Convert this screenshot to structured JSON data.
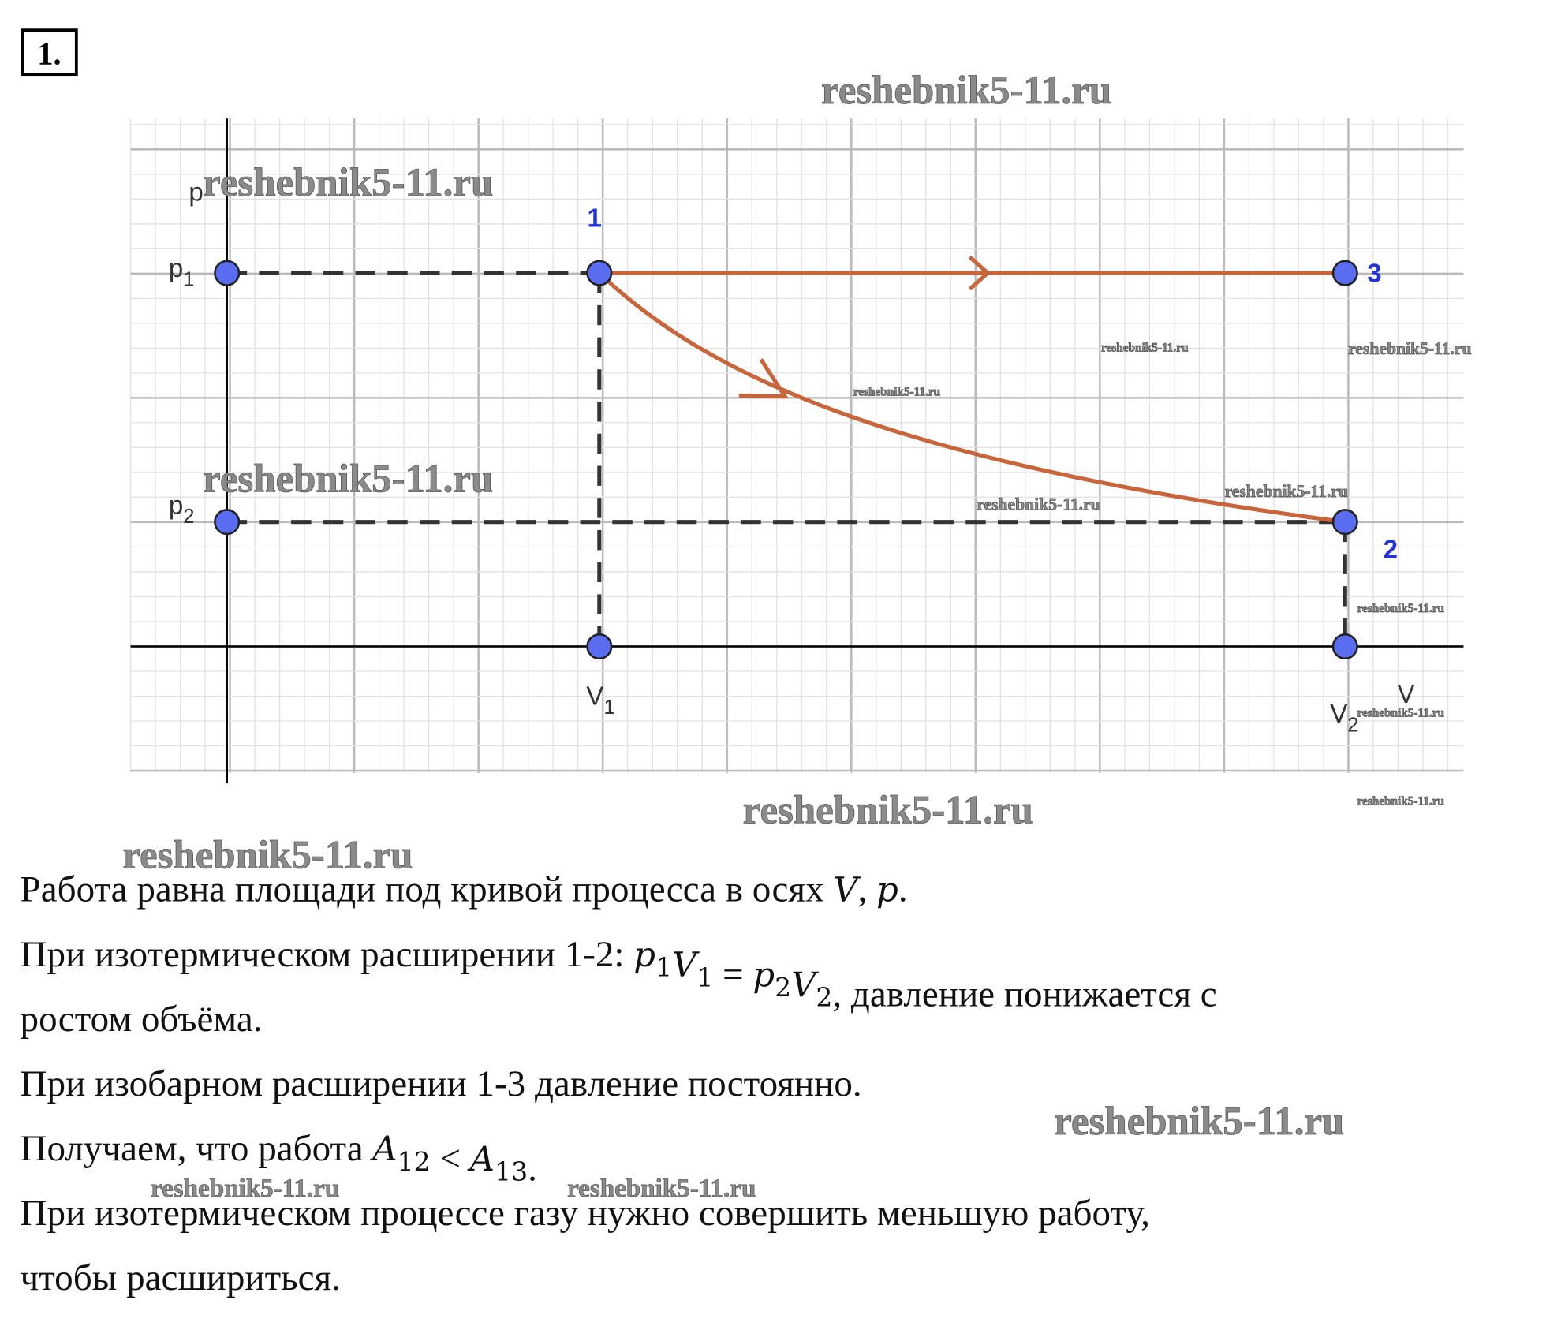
{
  "problem_number": "1.",
  "watermark": "reshebnik5-11.ru",
  "diagram": {
    "p_axis": "p",
    "v_axis": "V",
    "p1": {
      "main": "p",
      "sub": "1"
    },
    "p2": {
      "main": "p",
      "sub": "2"
    },
    "v1": {
      "main": "V",
      "sub": "1"
    },
    "v2": {
      "main": "V",
      "sub": "2"
    },
    "point_labels": [
      "1",
      "2",
      "3"
    ]
  },
  "text": {
    "lines": [
      [
        "Работа равна площади под кривой процесса в осях ",
        {
          "var": "V"
        },
        ", ",
        {
          "var": "p"
        },
        "."
      ],
      [
        "При изотермическом расширении 1-2: ",
        {
          "var": "p",
          "sub": "1"
        },
        {
          "var": "V",
          "sub": "1"
        },
        " = ",
        {
          "var": "p",
          "sub": "2"
        },
        {
          "var": "V",
          "sub": "2"
        },
        ", давление понижается с"
      ],
      [
        "ростом объёма."
      ],
      [
        "При изобарном расширении 1-3 давление постоянно."
      ],
      [
        "Получаем, что работа ",
        {
          "var": "A",
          "sub": "12"
        },
        " < ",
        {
          "var": "A",
          "sub": "13"
        },
        "."
      ],
      [
        "При изотермическом процессе газу нужно совершить меньшую работу,"
      ],
      [
        "чтобы расшириться."
      ]
    ]
  }
}
